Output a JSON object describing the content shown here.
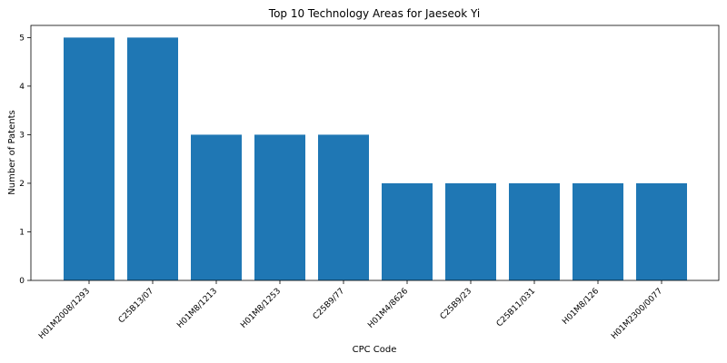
{
  "chart_data": {
    "type": "bar",
    "title": "Top 10 Technology Areas for Jaeseok Yi",
    "xlabel": "CPC Code",
    "ylabel": "Number of Patents",
    "categories": [
      "H01M2008/1293",
      "C25B13/07",
      "H01M8/1213",
      "H01M8/1253",
      "C25B9/77",
      "H01M4/8626",
      "C25B9/23",
      "C25B11/031",
      "H01M8/126",
      "H01M2300/0077"
    ],
    "values": [
      5,
      5,
      3,
      3,
      3,
      2,
      2,
      2,
      2,
      2
    ],
    "yticks": [
      "0",
      "1",
      "2",
      "3",
      "4",
      "5"
    ],
    "ylim": [
      0,
      5.25
    ],
    "grid": false,
    "bar_color": "#1f77b4"
  }
}
